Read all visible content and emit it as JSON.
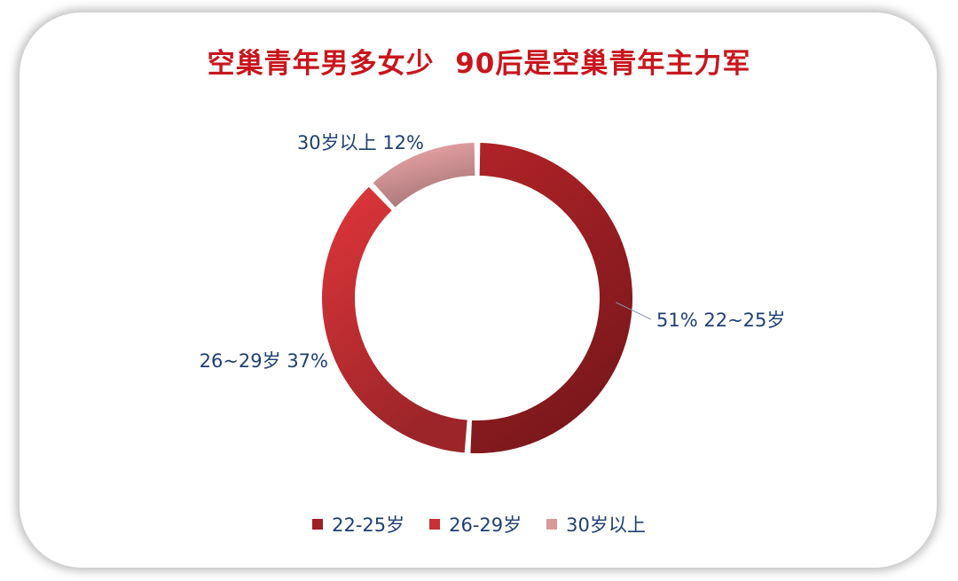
{
  "chart_data": {
    "type": "pie",
    "title": "空巢青年男多女少  90后是空巢青年主力军",
    "categories": [
      "22-25岁",
      "26-29岁",
      "30岁以上"
    ],
    "values": [
      51,
      37,
      12
    ],
    "data_labels": [
      "51% 22~25岁",
      "26~29岁 37%",
      "30岁以上 12%"
    ],
    "colors": [
      "#9e1f24",
      "#c83035",
      "#d9999b"
    ],
    "legend_position": "bottom",
    "donut": true
  }
}
